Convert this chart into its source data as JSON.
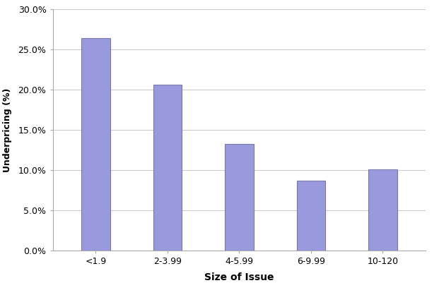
{
  "categories": [
    "<1.9",
    "2-3.99",
    "4-5.99",
    "6-9.99",
    "10-120"
  ],
  "values": [
    0.264,
    0.206,
    0.132,
    0.087,
    0.101
  ],
  "bar_color": "#9999dd",
  "bar_edge_color": "#7777aa",
  "xlabel": "Size of Issue",
  "ylabel": "Underpricing (%)",
  "ylim": [
    0,
    0.3
  ],
  "yticks": [
    0.0,
    0.05,
    0.1,
    0.15,
    0.2,
    0.25,
    0.3
  ],
  "background_color": "#ffffff",
  "grid_color": "#cccccc",
  "xlabel_fontsize": 10,
  "ylabel_fontsize": 9,
  "tick_fontsize": 9,
  "bar_width": 0.4
}
